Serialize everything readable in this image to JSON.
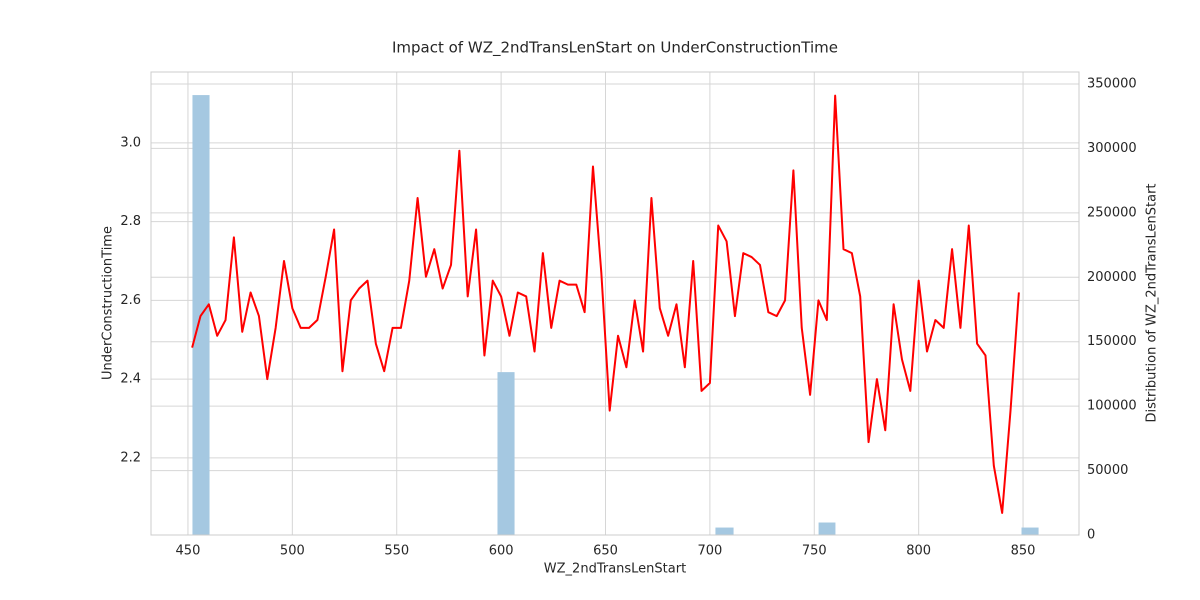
{
  "chart_data": {
    "type": "line_histogram",
    "title": "Impact of WZ_2ndTransLenStart on UnderConstructionTime",
    "x_label": "WZ_2ndTransLenStart",
    "y_label": "UnderConstructionTime",
    "y2_label": "Distribution of WZ_2ndTransLenStart",
    "xlim": [
      432.3,
      876.8
    ],
    "xticks": [
      450,
      500,
      550,
      600,
      650,
      700,
      750,
      800,
      850
    ],
    "ylim": [
      2.004,
      3.18
    ],
    "yticks": [
      {
        "value": 2.2,
        "label": "2.2"
      },
      {
        "value": 2.4,
        "label": "2.4"
      },
      {
        "value": 2.6,
        "label": "2.6"
      },
      {
        "value": 2.8,
        "label": "2.8"
      },
      {
        "value": 3,
        "label": "3.0"
      }
    ],
    "y2lim": [
      0,
      359300
    ],
    "y2ticks": [
      0,
      50000,
      100000,
      150000,
      200000,
      250000,
      300000,
      350000
    ],
    "grid": true,
    "histogram": {
      "color": "#a5c8e1",
      "axis": "y2",
      "bins": [
        452.4,
        460.1,
        598.5,
        606.2,
        702.9,
        711.1,
        752.3,
        759.9,
        849.5,
        857.2
      ],
      "counts": [
        341000,
        0,
        126000,
        0,
        5400,
        0,
        9300,
        0,
        5400
      ]
    },
    "series": [
      {
        "name": "UnderConstructionTime",
        "color": "#ff0000",
        "x": [
          452,
          456,
          460,
          464,
          468,
          472,
          476,
          480,
          484,
          488,
          492,
          496,
          500,
          504,
          508,
          512,
          516,
          520,
          524,
          528,
          532,
          536,
          540,
          544,
          548,
          552,
          556,
          560,
          564,
          568,
          572,
          576,
          580,
          584,
          588,
          592,
          596,
          600,
          604,
          608,
          612,
          616,
          620,
          624,
          628,
          632,
          636,
          640,
          644,
          648,
          652,
          656,
          660,
          664,
          668,
          672,
          676,
          680,
          684,
          688,
          692,
          696,
          700,
          704,
          708,
          712,
          716,
          720,
          724,
          728,
          732,
          736,
          740,
          744,
          748,
          752,
          756,
          760,
          764,
          768,
          772,
          776,
          780,
          784,
          788,
          792,
          796,
          800,
          804,
          808,
          812,
          816,
          820,
          824,
          828,
          832,
          836,
          840,
          844,
          848
        ],
        "values": [
          2.48,
          2.56,
          2.59,
          2.51,
          2.55,
          2.76,
          2.52,
          2.62,
          2.56,
          2.4,
          2.53,
          2.7,
          2.58,
          2.53,
          2.53,
          2.55,
          2.66,
          2.78,
          2.42,
          2.6,
          2.63,
          2.65,
          2.49,
          2.42,
          2.53,
          2.53,
          2.65,
          2.86,
          2.66,
          2.73,
          2.63,
          2.69,
          2.98,
          2.61,
          2.78,
          2.46,
          2.65,
          2.61,
          2.51,
          2.62,
          2.61,
          2.47,
          2.72,
          2.53,
          2.65,
          2.64,
          2.64,
          2.57,
          2.94,
          2.67,
          2.32,
          2.51,
          2.43,
          2.6,
          2.47,
          2.86,
          2.58,
          2.51,
          2.59,
          2.43,
          2.7,
          2.37,
          2.39,
          2.79,
          2.75,
          2.56,
          2.72,
          2.71,
          2.69,
          2.57,
          2.56,
          2.6,
          2.93,
          2.53,
          2.36,
          2.6,
          2.55,
          3.12,
          2.73,
          2.72,
          2.61,
          2.24,
          2.4,
          2.27,
          2.59,
          2.45,
          2.37,
          2.65,
          2.47,
          2.55,
          2.53,
          2.73,
          2.53,
          2.79,
          2.49,
          2.46,
          2.18,
          2.06,
          2.32,
          2.62
        ]
      }
    ]
  }
}
